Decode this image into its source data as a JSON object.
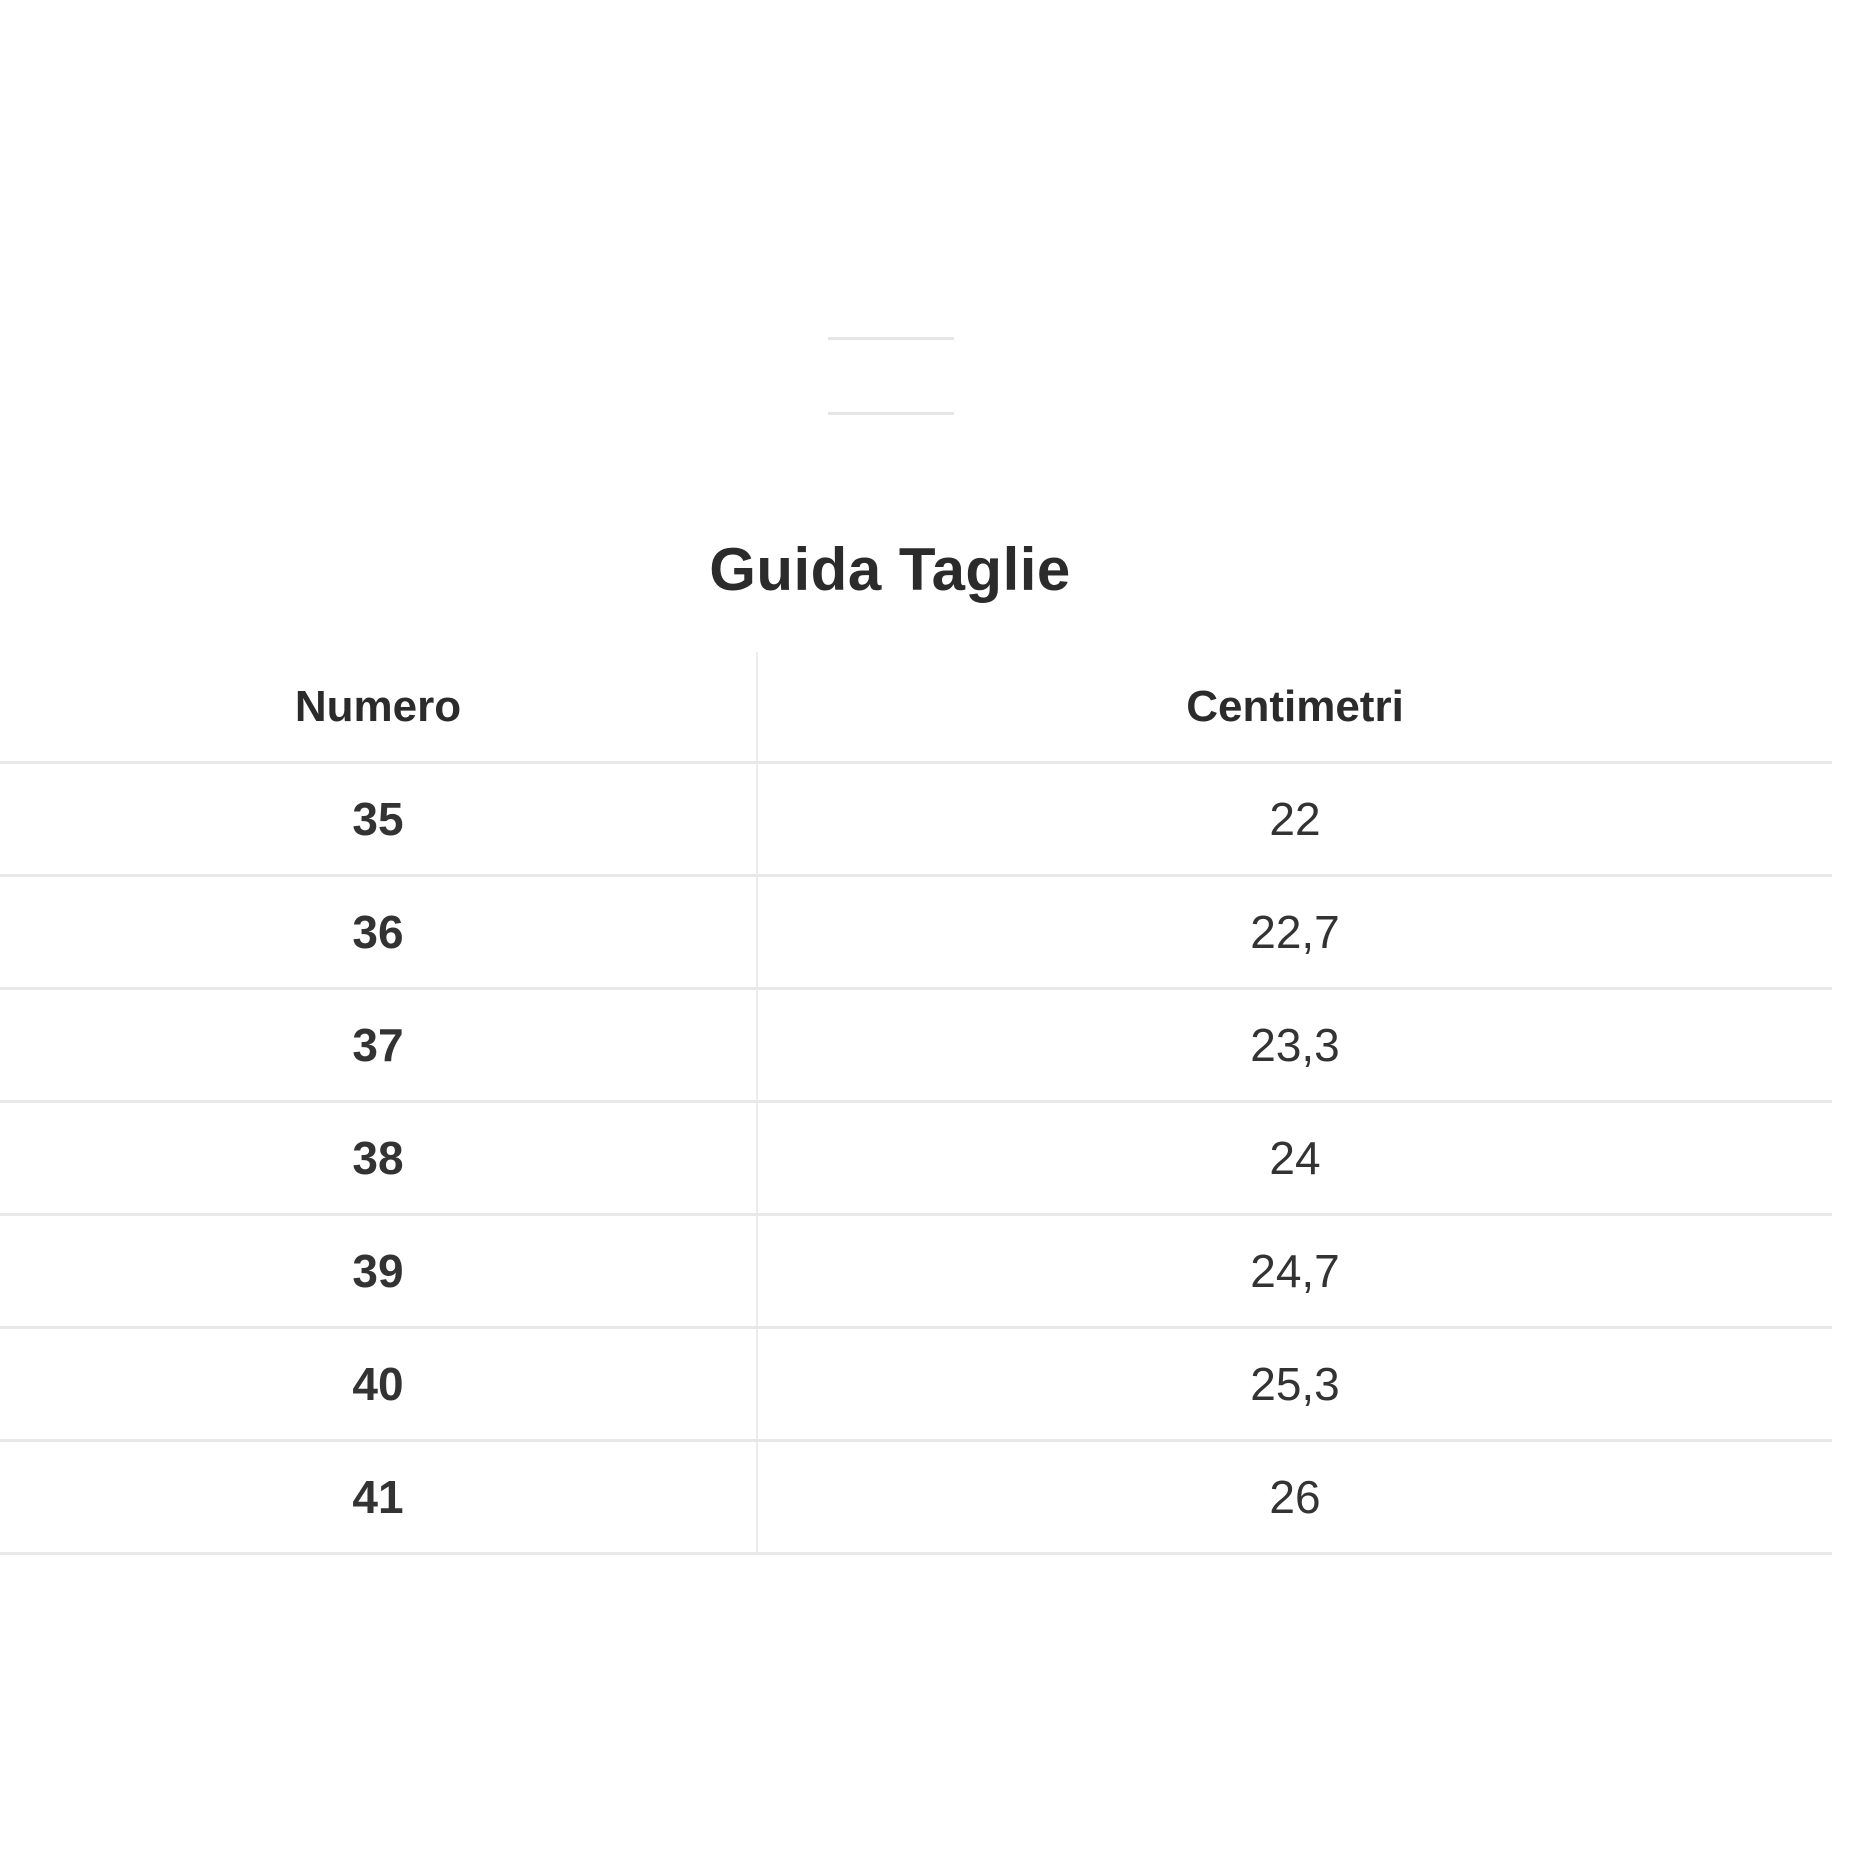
{
  "title": "Guida Taglie",
  "table": {
    "headers": [
      "Numero",
      "Centimetri"
    ],
    "rows": [
      [
        "35",
        "22"
      ],
      [
        "36",
        "22,7"
      ],
      [
        "37",
        "23,3"
      ],
      [
        "38",
        "24"
      ],
      [
        "39",
        "24,7"
      ],
      [
        "40",
        "25,3"
      ],
      [
        "41",
        "26"
      ]
    ]
  }
}
